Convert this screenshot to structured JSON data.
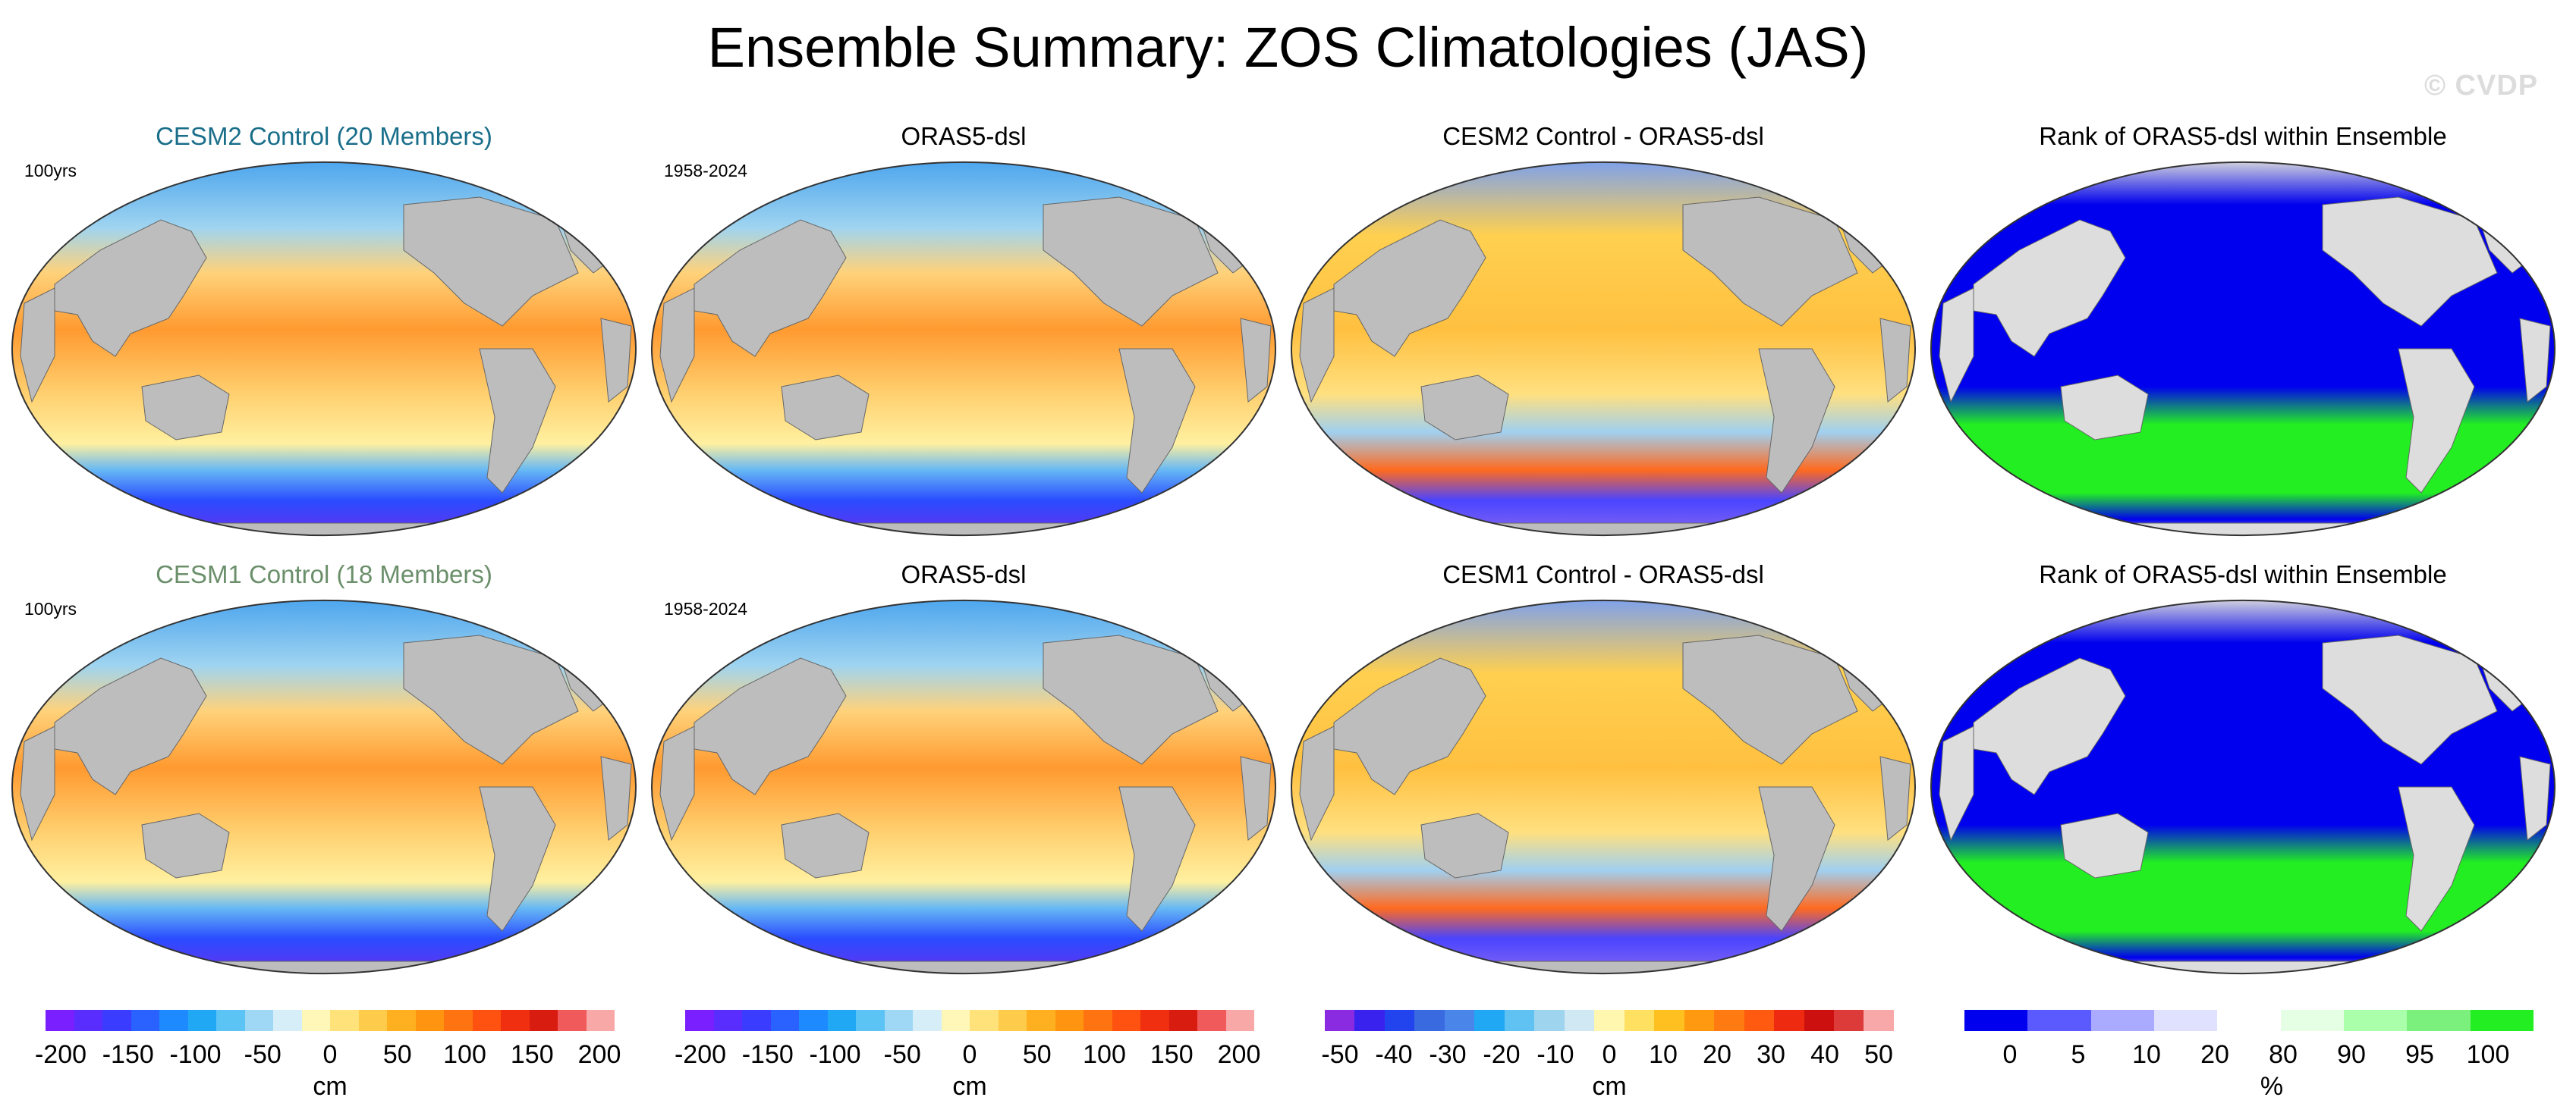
{
  "title": "Ensemble Summary: ZOS Climatologies (JAS)",
  "watermark": "© CVDP",
  "colors": {
    "land": "#bdbdbd",
    "land_light": "#dddddd",
    "title_cesm2": "#1a6e8a",
    "title_cesm1": "#6b8f6b",
    "rank_low": "#0000ee",
    "rank_high": "#22ee22"
  },
  "rows": [
    {
      "panels": [
        {
          "title": "CESM2 Control (20 Members)",
          "subtitle": "100yrs",
          "kind": "climo"
        },
        {
          "title": "ORAS5-dsl",
          "subtitle": "1958-2024",
          "kind": "climo"
        },
        {
          "title": "CESM2 Control - ORAS5-dsl",
          "subtitle": "",
          "kind": "diff"
        },
        {
          "title": "Rank of ORAS5-dsl within Ensemble",
          "subtitle": "",
          "kind": "rank"
        }
      ]
    },
    {
      "panels": [
        {
          "title": "CESM1 Control (18 Members)",
          "subtitle": "100yrs",
          "kind": "climo"
        },
        {
          "title": "ORAS5-dsl",
          "subtitle": "1958-2024",
          "kind": "climo"
        },
        {
          "title": "CESM1 Control - ORAS5-dsl",
          "subtitle": "",
          "kind": "diff"
        },
        {
          "title": "Rank of ORAS5-dsl within Ensemble",
          "subtitle": "",
          "kind": "rank"
        }
      ]
    }
  ],
  "colorbars": [
    {
      "unit": "cm",
      "ticks": [
        "-200",
        "-150",
        "-100",
        "-50",
        "0",
        "50",
        "100",
        "150",
        "200"
      ],
      "colors": [
        "#7a1fff",
        "#5a2dff",
        "#3a3dff",
        "#2a62ff",
        "#1d8bff",
        "#21a8f5",
        "#5cc3f5",
        "#9fd8f5",
        "#d6eef8",
        "#fff7b8",
        "#ffe27a",
        "#ffcb4a",
        "#ffb021",
        "#ff9410",
        "#ff7410",
        "#ff5210",
        "#f02f10",
        "#d81c10",
        "#f05a5a",
        "#f9a8a8"
      ]
    },
    {
      "unit": "cm",
      "ticks": [
        "-200",
        "-150",
        "-100",
        "-50",
        "0",
        "50",
        "100",
        "150",
        "200"
      ],
      "colors": [
        "#7a1fff",
        "#5a2dff",
        "#3a3dff",
        "#2a62ff",
        "#1d8bff",
        "#21a8f5",
        "#5cc3f5",
        "#9fd8f5",
        "#d6eef8",
        "#fff7b8",
        "#ffe27a",
        "#ffcb4a",
        "#ffb021",
        "#ff9410",
        "#ff7410",
        "#ff5210",
        "#f02f10",
        "#d81c10",
        "#f05a5a",
        "#f9a8a8"
      ]
    },
    {
      "unit": "cm",
      "ticks": [
        "-50",
        "-40",
        "-30",
        "-20",
        "-10",
        "0",
        "10",
        "20",
        "30",
        "40",
        "50"
      ],
      "colors": [
        "#8a2be2",
        "#3a22ee",
        "#2244ee",
        "#3a6ae0",
        "#4a86ea",
        "#21a8f5",
        "#60c2f2",
        "#9fd4ee",
        "#cfe8f4",
        "#fff7b0",
        "#ffe060",
        "#ffc020",
        "#ff9a10",
        "#ff7a10",
        "#ff5a10",
        "#ee2a10",
        "#cc1010",
        "#dd3a3a",
        "#f8a8a8"
      ]
    },
    {
      "unit": "%",
      "ticks": [
        "0",
        "5",
        "10",
        "20",
        "80",
        "90",
        "95",
        "100"
      ],
      "colors": [
        "#0000ee",
        "#5a5aff",
        "#aaaaff",
        "#e0e0ff",
        "#ffffff",
        "#e4ffe4",
        "#aaffaa",
        "#7cf07c",
        "#22ee22"
      ]
    }
  ]
}
